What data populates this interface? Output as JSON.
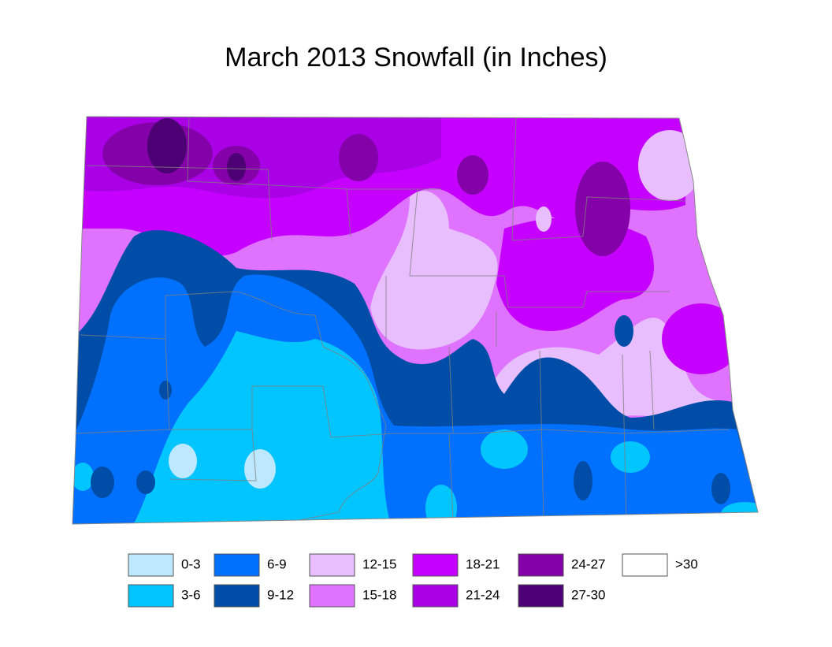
{
  "title": "March 2013 Snowfall (in Inches)",
  "legend": [
    {
      "label": "0-3",
      "color": "#bee8ff"
    },
    {
      "label": "3-6",
      "color": "#00c5ff"
    },
    {
      "label": "6-9",
      "color": "#0070ff"
    },
    {
      "label": "9-12",
      "color": "#004da8"
    },
    {
      "label": "12-15",
      "color": "#e8beff"
    },
    {
      "label": "15-18",
      "color": "#df73ff"
    },
    {
      "label": "18-21",
      "color": "#c500ff"
    },
    {
      "label": "21-24",
      "color": "#a900e6"
    },
    {
      "label": "24-27",
      "color": "#8400a8"
    },
    {
      "label": "27-30",
      "color": "#4c0073"
    },
    {
      "label": ">30",
      "color": "#ffffff"
    }
  ]
}
